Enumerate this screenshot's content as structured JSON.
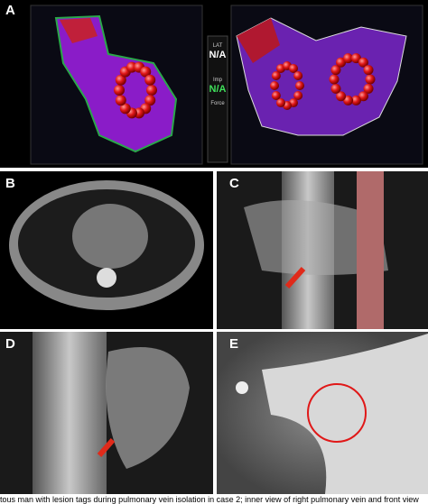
{
  "panels": {
    "a": "A",
    "b": "B",
    "c": "C",
    "d": "D",
    "e": "E"
  },
  "overlay": {
    "lat": "LAT",
    "lat_value": "N/A",
    "imp": "Imp",
    "imp_value": "N/A",
    "force": "Force"
  },
  "caption": "tous man with lesion tags during pulmonary vein isolation in case 2; inner view of right pulmonary vein and front view"
}
